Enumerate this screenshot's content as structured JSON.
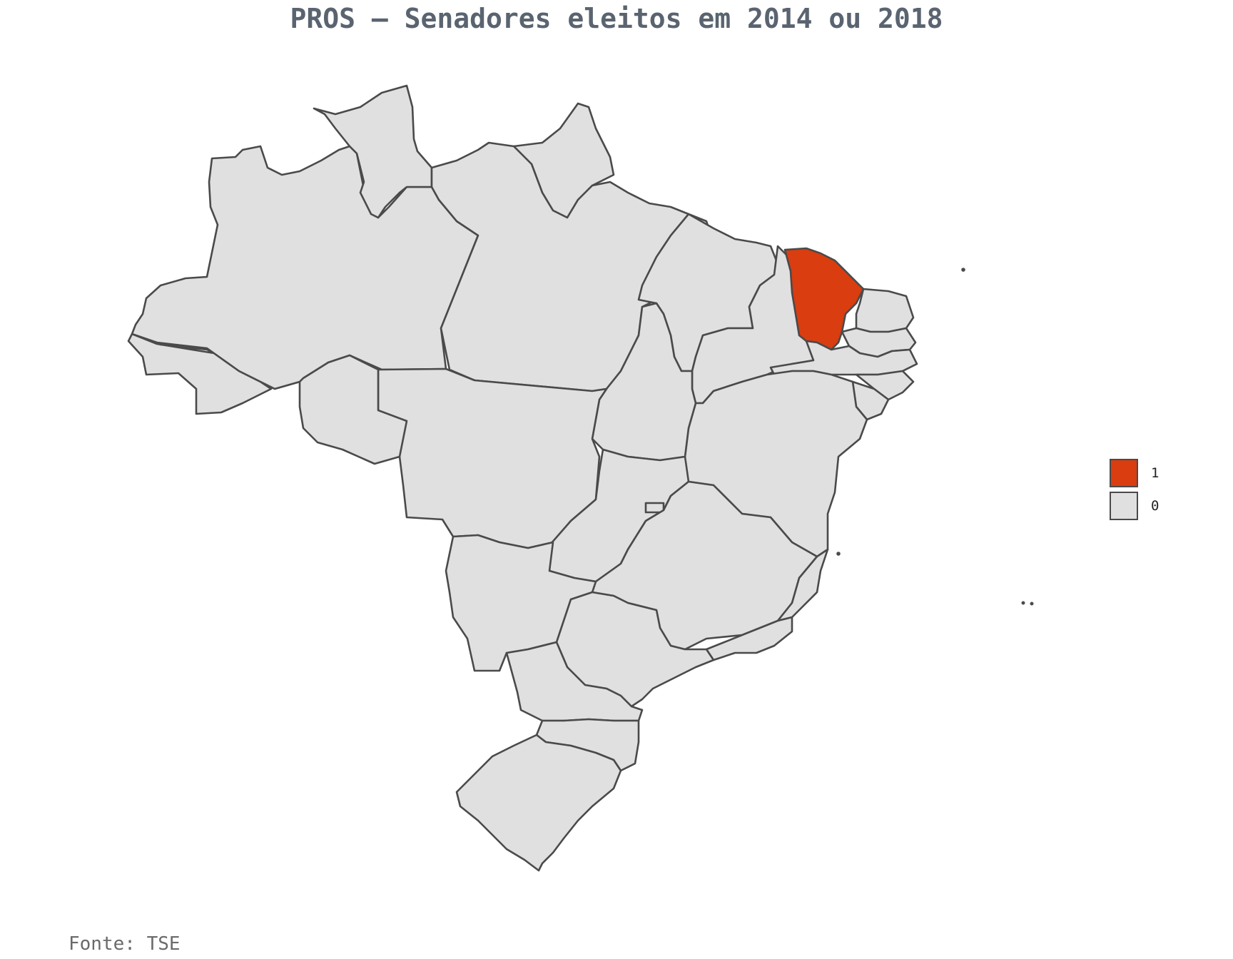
{
  "title": "PROS – Senadores eleitos em 2014 ou 2018",
  "source": "Fonte: TSE",
  "colors": {
    "elected": "#d93d10",
    "none": "#e0e0e0",
    "border": "#4a4a4a"
  },
  "legend": [
    {
      "label": "1",
      "value": 1
    },
    {
      "label": "0",
      "value": 0
    }
  ],
  "map_data": {
    "country": "Brasil",
    "states": [
      {
        "uf": "AC",
        "value": 0
      },
      {
        "uf": "AM",
        "value": 0
      },
      {
        "uf": "RR",
        "value": 0
      },
      {
        "uf": "RO",
        "value": 0
      },
      {
        "uf": "PA",
        "value": 0
      },
      {
        "uf": "AP",
        "value": 0
      },
      {
        "uf": "MT",
        "value": 0
      },
      {
        "uf": "TO",
        "value": 0
      },
      {
        "uf": "MA",
        "value": 0
      },
      {
        "uf": "PI",
        "value": 0
      },
      {
        "uf": "CE",
        "value": 1
      },
      {
        "uf": "RN",
        "value": 0
      },
      {
        "uf": "PB",
        "value": 0
      },
      {
        "uf": "PE",
        "value": 0
      },
      {
        "uf": "AL",
        "value": 0
      },
      {
        "uf": "SE",
        "value": 0
      },
      {
        "uf": "BA",
        "value": 0
      },
      {
        "uf": "GO",
        "value": 0
      },
      {
        "uf": "DF",
        "value": 0
      },
      {
        "uf": "MS",
        "value": 0
      },
      {
        "uf": "MG",
        "value": 0
      },
      {
        "uf": "ES",
        "value": 0
      },
      {
        "uf": "SP",
        "value": 0
      },
      {
        "uf": "RJ",
        "value": 0
      },
      {
        "uf": "PR",
        "value": 0
      },
      {
        "uf": "SC",
        "value": 0
      },
      {
        "uf": "RS",
        "value": 0
      }
    ]
  }
}
